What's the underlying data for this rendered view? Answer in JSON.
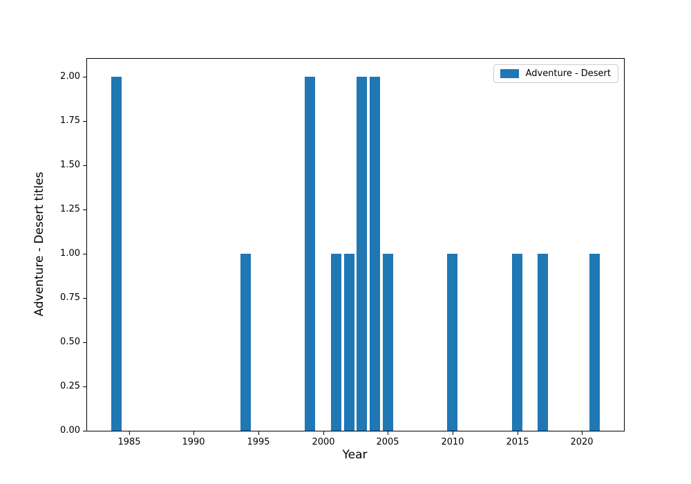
{
  "chart_data": {
    "type": "bar",
    "title": "",
    "xlabel": "Year",
    "ylabel": "Adventure - Desert titles",
    "legend_label": "Adventure - Desert",
    "legend_position": "upper right",
    "bar_color": "#1f77b4",
    "x": [
      1984,
      1994,
      1999,
      2001,
      2002,
      2003,
      2004,
      2005,
      2010,
      2015,
      2017,
      2021
    ],
    "values": [
      2,
      1,
      2,
      1,
      1,
      2,
      2,
      1,
      1,
      1,
      1,
      1
    ],
    "bar_width_years": 0.8,
    "xlim": [
      1981.75,
      2023.25
    ],
    "ylim": [
      0,
      2.1
    ],
    "xticks": [
      1985,
      1990,
      1995,
      2000,
      2005,
      2010,
      2015,
      2020
    ],
    "yticks": [
      "0.00",
      "0.25",
      "0.50",
      "0.75",
      "1.00",
      "1.25",
      "1.50",
      "1.75",
      "2.00"
    ],
    "grid": false
  }
}
